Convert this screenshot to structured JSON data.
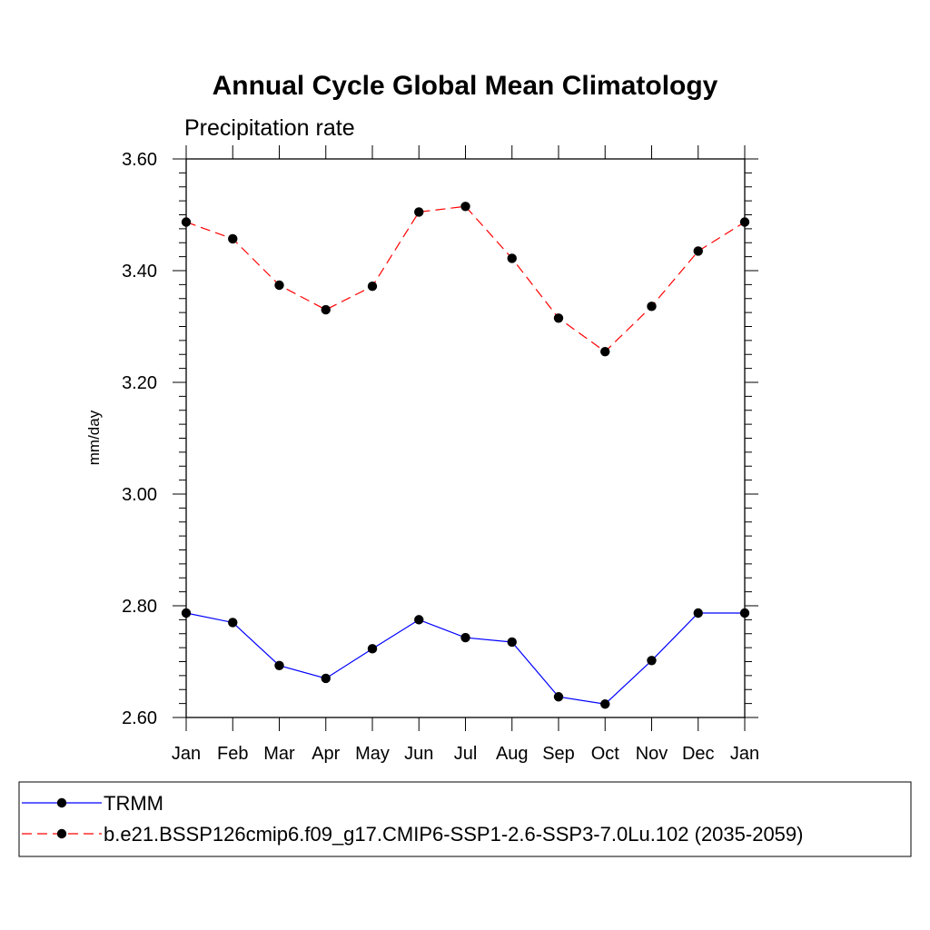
{
  "chart_data": {
    "type": "line",
    "title": "Annual Cycle Global Mean Climatology",
    "subtitle": "Precipitation rate",
    "xlabel": "",
    "ylabel": "mm/day",
    "categories": [
      "Jan",
      "Feb",
      "Mar",
      "Apr",
      "May",
      "Jun",
      "Jul",
      "Aug",
      "Sep",
      "Oct",
      "Nov",
      "Dec",
      "Jan"
    ],
    "ylim": [
      2.6,
      3.6
    ],
    "yticks": [
      "2.60",
      "2.80",
      "3.00",
      "3.20",
      "3.40",
      "3.60"
    ],
    "grid": false,
    "legend_position": "bottom",
    "series": [
      {
        "name": "TRMM",
        "color": "#0000ff",
        "dash": "solid",
        "marker": "dot",
        "values": [
          2.787,
          2.77,
          2.693,
          2.67,
          2.723,
          2.775,
          2.743,
          2.735,
          2.637,
          2.624,
          2.702,
          2.787,
          2.787
        ]
      },
      {
        "name": "b.e21.BSSP126cmip6.f09_g17.CMIP6-SSP1-2.6-SSP3-7.0Lu.102 (2035-2059)",
        "color": "#ff0000",
        "dash": "dashed",
        "marker": "dot",
        "values": [
          3.487,
          3.457,
          3.374,
          3.33,
          3.372,
          3.505,
          3.515,
          3.422,
          3.315,
          3.255,
          3.336,
          3.435,
          3.487
        ]
      }
    ]
  }
}
